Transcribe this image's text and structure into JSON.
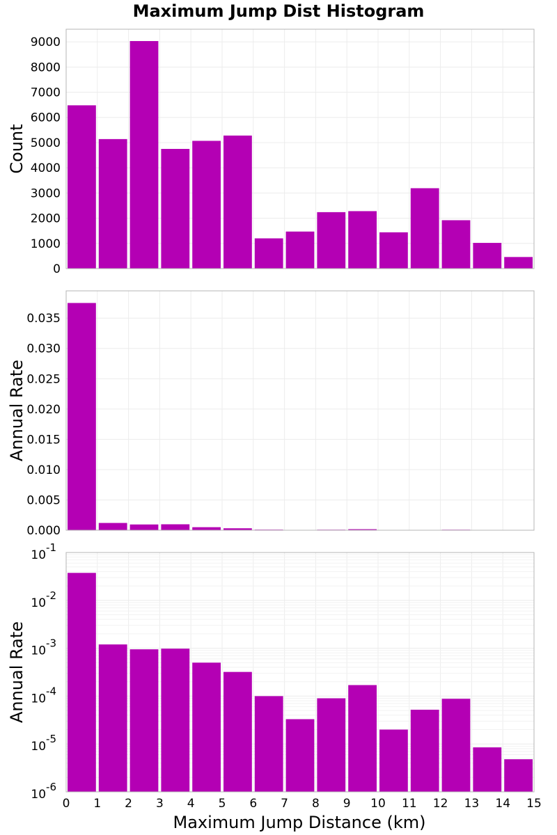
{
  "chart_data": [
    {
      "type": "bar",
      "title": "Maximum Jump Dist Histogram",
      "ylabel": "Count",
      "xlabel": "",
      "x_bins": [
        0.5,
        1.5,
        2.5,
        3.5,
        4.5,
        5.5,
        6.5,
        7.5,
        8.5,
        9.5,
        10.5,
        11.5,
        12.5,
        13.5,
        14.5
      ],
      "values": [
        6480,
        5140,
        9030,
        4750,
        5070,
        5280,
        1200,
        1470,
        2240,
        2280,
        1440,
        3190,
        1920,
        1020,
        460
      ],
      "xlim": [
        0,
        15
      ],
      "ylim": [
        0,
        9500
      ],
      "yticks": [
        "0",
        "1000",
        "2000",
        "3000",
        "4000",
        "5000",
        "6000",
        "7000",
        "8000",
        "9000"
      ],
      "color": "#b400b4",
      "grid": true
    },
    {
      "type": "bar",
      "title": "",
      "ylabel": "Annual Rate",
      "xlabel": "",
      "x_bins": [
        0.5,
        1.5,
        2.5,
        3.5,
        4.5,
        5.5,
        6.5,
        7.5,
        8.5,
        9.5,
        10.5,
        11.5,
        12.5,
        13.5,
        14.5
      ],
      "values": [
        0.0375,
        0.0012,
        0.00095,
        0.00098,
        0.0005,
        0.00032,
        0.0001,
        3.3e-05,
        9e-05,
        0.00017,
        2e-05,
        5.2e-05,
        8.8e-05,
        8.5e-06,
        4.8e-06
      ],
      "xlim": [
        0,
        15
      ],
      "ylim": [
        0,
        0.0395
      ],
      "yticks": [
        "0.000",
        "0.005",
        "0.010",
        "0.015",
        "0.020",
        "0.025",
        "0.030",
        "0.035"
      ],
      "color": "#b400b4",
      "grid": true
    },
    {
      "type": "bar",
      "title": "",
      "ylabel": "Annual Rate",
      "xlabel": "Maximum Jump Distance (km)",
      "log_y": true,
      "x_bins": [
        0.5,
        1.5,
        2.5,
        3.5,
        4.5,
        5.5,
        6.5,
        7.5,
        8.5,
        9.5,
        10.5,
        11.5,
        12.5,
        13.5,
        14.5
      ],
      "values": [
        0.0375,
        0.0012,
        0.00095,
        0.00098,
        0.0005,
        0.00032,
        0.0001,
        3.3e-05,
        9e-05,
        0.00017,
        2e-05,
        5.2e-05,
        8.8e-05,
        8.5e-06,
        4.8e-06
      ],
      "xlim": [
        0,
        15
      ],
      "ylim": [
        1e-06,
        0.1
      ],
      "yticks": [
        "-6",
        "-5",
        "-4",
        "-3",
        "-2",
        "-1"
      ],
      "ytick_base": "10",
      "xticks": [
        "0",
        "1",
        "2",
        "3",
        "4",
        "5",
        "6",
        "7",
        "8",
        "9",
        "10",
        "11",
        "12",
        "13",
        "14",
        "15"
      ],
      "color": "#b400b4",
      "grid": true
    }
  ]
}
